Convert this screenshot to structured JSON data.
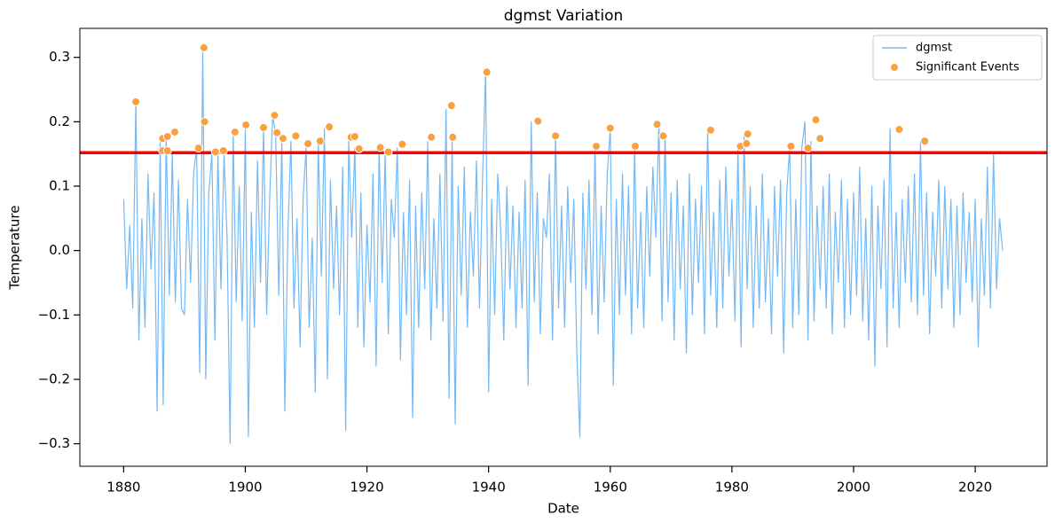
{
  "chart_data": {
    "type": "line",
    "title": "dgmst Variation",
    "xlabel": "Date",
    "ylabel": "Temperature",
    "xlim": [
      1872.8,
      2031.8
    ],
    "xticks": [
      1880,
      1900,
      1920,
      1940,
      1960,
      1980,
      2000,
      2020
    ],
    "ylim": [
      -0.335,
      0.345
    ],
    "yticks": [
      {
        "value": -0.3,
        "label": "−0.3"
      },
      {
        "value": -0.2,
        "label": "−0.2"
      },
      {
        "value": -0.1,
        "label": "−0.1"
      },
      {
        "value": 0,
        "label": "0.0"
      },
      0.1,
      0.2,
      0.3
    ],
    "legend": "upper right",
    "threshold": {
      "value": 0.152,
      "color": "#ff0000"
    },
    "series": [
      {
        "name": "dgmst",
        "type": "line",
        "color": "#74b9f5",
        "x": [
          1880,
          1880.5,
          1881,
          1881.5,
          1882,
          1882.5,
          1883,
          1883.5,
          1884,
          1884.5,
          1885,
          1885.5,
          1886,
          1886.5,
          1887,
          1887.5,
          1888,
          1888.5,
          1889,
          1889.5,
          1890,
          1890.5,
          1891,
          1891.5,
          1892,
          1892.5,
          1893,
          1893.5,
          1894,
          1894.5,
          1895,
          1895.5,
          1896,
          1896.5,
          1897,
          1897.5,
          1898,
          1898.5,
          1899,
          1899.5,
          1900,
          1900.5,
          1901,
          1901.5,
          1902,
          1902.5,
          1903,
          1903.5,
          1904,
          1904.5,
          1905,
          1905.5,
          1906,
          1906.5,
          1907,
          1907.5,
          1908,
          1908.5,
          1909,
          1909.5,
          1910,
          1910.5,
          1911,
          1911.5,
          1912,
          1912.5,
          1913,
          1913.5,
          1914,
          1914.5,
          1915,
          1915.5,
          1916,
          1916.5,
          1917,
          1917.5,
          1918,
          1918.5,
          1919,
          1919.5,
          1920,
          1920.5,
          1921,
          1921.5,
          1922,
          1922.5,
          1923,
          1923.5,
          1924,
          1924.5,
          1925,
          1925.5,
          1926,
          1926.5,
          1927,
          1927.5,
          1928,
          1928.5,
          1929,
          1929.5,
          1930,
          1930.5,
          1931,
          1931.5,
          1932,
          1932.5,
          1933,
          1933.5,
          1934,
          1934.5,
          1935,
          1935.5,
          1936,
          1936.5,
          1937,
          1937.5,
          1938,
          1938.5,
          1939,
          1939.5,
          1940,
          1940.5,
          1941,
          1941.5,
          1942,
          1942.5,
          1943,
          1943.5,
          1944,
          1944.5,
          1945,
          1945.5,
          1946,
          1946.5,
          1947,
          1947.5,
          1948,
          1948.5,
          1949,
          1949.5,
          1950,
          1950.5,
          1951,
          1951.5,
          1952,
          1952.5,
          1953,
          1953.5,
          1954,
          1954.5,
          1955,
          1955.5,
          1956,
          1956.5,
          1957,
          1957.5,
          1958,
          1958.5,
          1959,
          1959.5,
          1960,
          1960.5,
          1961,
          1961.5,
          1962,
          1962.5,
          1963,
          1963.5,
          1964,
          1964.5,
          1965,
          1965.5,
          1966,
          1966.5,
          1967,
          1967.5,
          1968,
          1968.5,
          1969,
          1969.5,
          1970,
          1970.5,
          1971,
          1971.5,
          1972,
          1972.5,
          1973,
          1973.5,
          1974,
          1974.5,
          1975,
          1975.5,
          1976,
          1976.5,
          1977,
          1977.5,
          1978,
          1978.5,
          1979,
          1979.5,
          1980,
          1980.5,
          1981,
          1981.5,
          1982,
          1982.5,
          1983,
          1983.5,
          1984,
          1984.5,
          1985,
          1985.5,
          1986,
          1986.5,
          1987,
          1987.5,
          1988,
          1988.5,
          1989,
          1989.5,
          1990,
          1990.5,
          1991,
          1991.5,
          1992,
          1992.5,
          1993,
          1993.5,
          1994,
          1994.5,
          1995,
          1995.5,
          1996,
          1996.5,
          1997,
          1997.5,
          1998,
          1998.5,
          1999,
          1999.5,
          2000,
          2000.5,
          2001,
          2001.5,
          2002,
          2002.5,
          2003,
          2003.5,
          2004,
          2004.5,
          2005,
          2005.5,
          2006,
          2006.5,
          2007,
          2007.5,
          2008,
          2008.5,
          2009,
          2009.5,
          2010,
          2010.5,
          2011,
          2011.5,
          2012,
          2012.5,
          2013,
          2013.5,
          2014,
          2014.5,
          2015,
          2015.5,
          2016,
          2016.5,
          2017,
          2017.5,
          2018,
          2018.5,
          2019,
          2019.5,
          2020,
          2020.5,
          2021,
          2021.5,
          2022,
          2022.5,
          2023,
          2023.5,
          2024,
          2024.5
        ],
        "values": [
          0.08,
          -0.06,
          0.04,
          -0.09,
          0.23,
          -0.14,
          0.05,
          -0.12,
          0.12,
          -0.03,
          0.09,
          -0.25,
          0.17,
          -0.24,
          0.18,
          -0.07,
          0.15,
          -0.08,
          0.11,
          -0.09,
          -0.1,
          0.08,
          -0.05,
          0.12,
          0.16,
          -0.19,
          0.31,
          -0.2,
          0.09,
          0.15,
          -0.14,
          0.15,
          -0.06,
          0.15,
          0.02,
          -0.3,
          0.18,
          -0.08,
          0.1,
          -0.11,
          0.19,
          -0.29,
          0.06,
          -0.12,
          0.14,
          -0.05,
          0.19,
          -0.1,
          0.08,
          0.21,
          0.18,
          -0.07,
          0.17,
          -0.25,
          0.03,
          0.17,
          -0.09,
          0.05,
          -0.15,
          0.08,
          0.16,
          -0.12,
          0.02,
          -0.22,
          0.17,
          -0.04,
          0.19,
          -0.2,
          0.11,
          -0.06,
          0.07,
          -0.1,
          0.13,
          -0.28,
          0.17,
          0.02,
          0.16,
          -0.12,
          0.09,
          -0.15,
          0.04,
          -0.08,
          0.12,
          -0.18,
          0.16,
          -0.05,
          0.15,
          -0.13,
          0.08,
          0.02,
          0.16,
          -0.17,
          0.06,
          -0.1,
          0.11,
          -0.26,
          0.07,
          -0.12,
          0.09,
          -0.06,
          0.17,
          -0.14,
          0.05,
          -0.09,
          0.12,
          -0.11,
          0.22,
          -0.23,
          0.17,
          -0.27,
          0.1,
          -0.07,
          0.13,
          -0.12,
          0.06,
          -0.04,
          0.14,
          -0.09,
          0.11,
          0.28,
          -0.22,
          0.08,
          -0.1,
          0.12,
          0.03,
          -0.14,
          0.1,
          -0.06,
          0.07,
          -0.12,
          0.06,
          -0.09,
          0.11,
          -0.21,
          0.2,
          -0.08,
          0.09,
          -0.13,
          0.05,
          0.02,
          0.12,
          -0.14,
          0.18,
          -0.09,
          0.07,
          -0.12,
          0.1,
          -0.05,
          0.08,
          -0.16,
          -0.29,
          0.09,
          -0.06,
          0.11,
          -0.1,
          0.16,
          -0.13,
          0.07,
          -0.08,
          0.12,
          0.19,
          -0.21,
          0.08,
          -0.1,
          0.12,
          -0.07,
          0.1,
          -0.13,
          0.16,
          -0.09,
          0.06,
          -0.12,
          0.1,
          -0.04,
          0.13,
          0.02,
          0.2,
          -0.11,
          0.18,
          -0.08,
          0.09,
          -0.14,
          0.11,
          -0.06,
          0.07,
          -0.16,
          0.12,
          -0.1,
          0.08,
          -0.05,
          0.1,
          -0.13,
          0.19,
          -0.07,
          0.06,
          -0.12,
          0.11,
          -0.09,
          0.13,
          -0.04,
          0.08,
          -0.11,
          0.16,
          -0.15,
          0.18,
          -0.06,
          0.1,
          -0.12,
          0.07,
          -0.09,
          0.12,
          -0.08,
          0.05,
          -0.13,
          0.1,
          -0.04,
          0.11,
          -0.16,
          0.09,
          0.16,
          -0.12,
          0.08,
          -0.1,
          0.16,
          0.2,
          -0.14,
          0.17,
          -0.11,
          0.07,
          -0.06,
          0.1,
          -0.09,
          0.12,
          -0.13,
          0.06,
          -0.05,
          0.11,
          -0.12,
          0.08,
          -0.1,
          0.09,
          -0.07,
          0.13,
          -0.11,
          0.05,
          -0.14,
          0.1,
          -0.18,
          0.07,
          -0.06,
          0.11,
          -0.15,
          0.19,
          -0.09,
          0.06,
          -0.12,
          0.08,
          -0.05,
          0.1,
          -0.08,
          0.12,
          -0.1,
          0.17,
          -0.07,
          0.09,
          -0.13,
          0.06,
          -0.04,
          0.11,
          -0.09,
          0.1,
          -0.06,
          0.08,
          -0.12,
          0.07,
          -0.1,
          0.09,
          -0.05,
          0.06,
          -0.08,
          0.08,
          -0.15,
          0.05,
          -0.07,
          0.13,
          -0.09,
          0.15,
          -0.06,
          0.05,
          0.0
        ]
      },
      {
        "name": "Significant Events",
        "type": "scatter",
        "color": "#f9a040",
        "x": [
          1882.0,
          1886.4,
          1887.2,
          1886.4,
          1887.2,
          1888.4,
          1892.3,
          1893.2,
          1893.3,
          1895.1,
          1896.4,
          1898.3,
          1900.1,
          1903.0,
          1904.8,
          1905.2,
          1906.2,
          1908.3,
          1910.3,
          1912.3,
          1913.8,
          1917.4,
          1918.0,
          1918.7,
          1922.2,
          1923.5,
          1925.8,
          1930.6,
          1933.9,
          1934.1,
          1939.7,
          1948.1,
          1951.0,
          1957.7,
          1960.0,
          1964.1,
          1967.7,
          1968.7,
          1976.5,
          1981.4,
          1982.4,
          1982.6,
          1989.7,
          1992.5,
          1993.8,
          1994.5,
          2007.5,
          2011.7
        ],
        "values": [
          0.231,
          0.174,
          0.177,
          0.155,
          0.155,
          0.184,
          0.159,
          0.315,
          0.2,
          0.153,
          0.155,
          0.184,
          0.195,
          0.191,
          0.21,
          0.183,
          0.174,
          0.178,
          0.166,
          0.17,
          0.192,
          0.176,
          0.177,
          0.158,
          0.16,
          0.153,
          0.165,
          0.176,
          0.225,
          0.176,
          0.277,
          0.201,
          0.178,
          0.162,
          0.19,
          0.162,
          0.196,
          0.178,
          0.187,
          0.162,
          0.166,
          0.181,
          0.162,
          0.159,
          0.203,
          0.174,
          0.188,
          0.17
        ]
      }
    ]
  }
}
